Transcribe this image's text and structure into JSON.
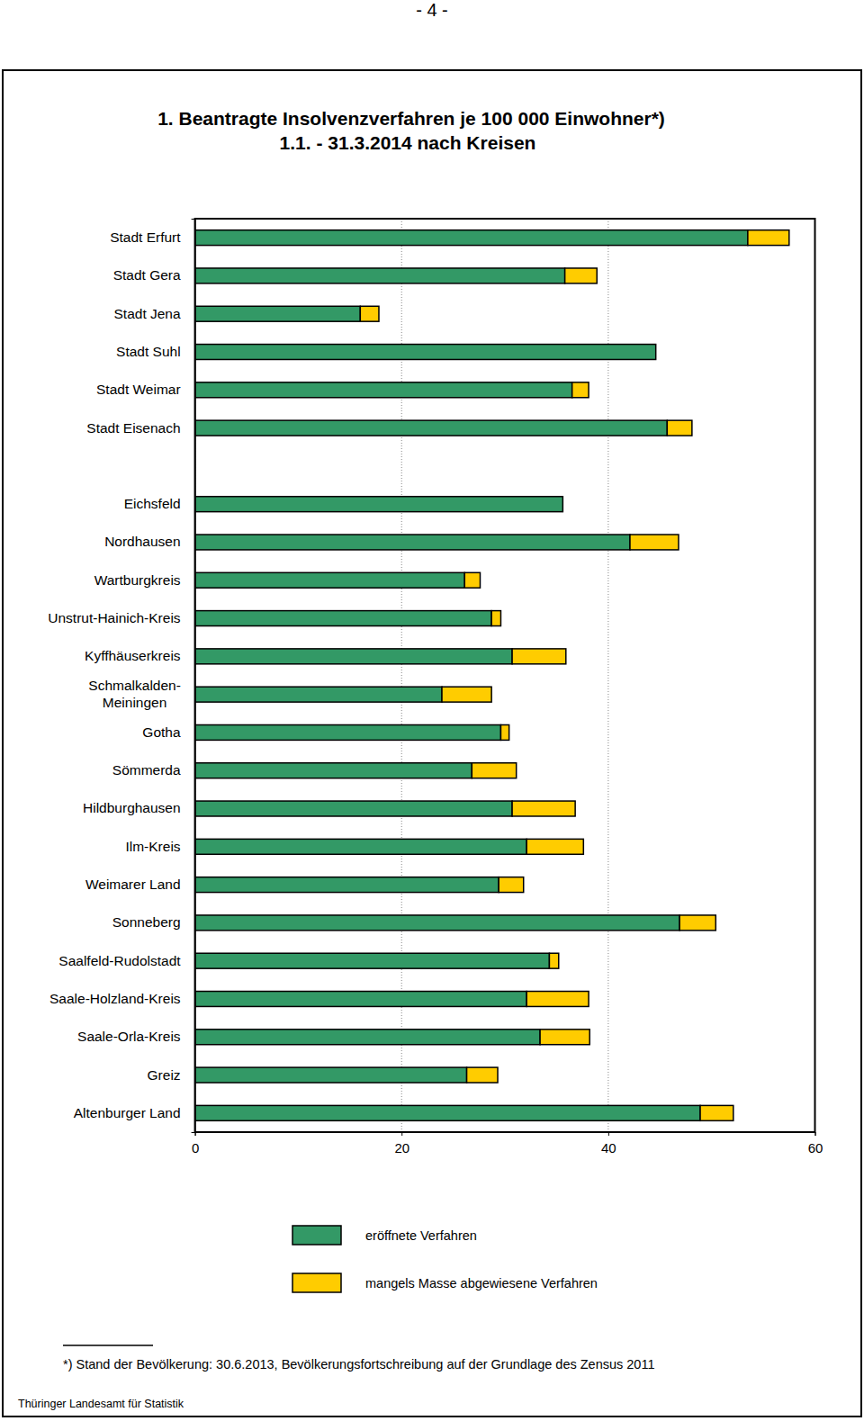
{
  "chart_data": {
    "type": "bar",
    "orientation": "horizontal",
    "stacked": true,
    "grid": true,
    "title": "1. Beantragte Insolvenzverfahren je 100 000 Einwohner*)",
    "subtitle": "1.1. - 31.3.2014 nach Kreisen",
    "annotations": [
      "- 4 -",
      "*) Stand der Bevölkerung: 30.6.2013, Bevölkerungsfortschreibung auf der Grundlage des Zensus 2011",
      "Thüringer Landesamt für Statistik"
    ],
    "legend": "bottom",
    "categories": [
      "Stadt Erfurt",
      "Stadt Gera",
      "Stadt Jena",
      "Stadt Suhl",
      "Stadt Weimar",
      "Stadt Eisenach",
      null,
      "Eichsfeld",
      "Nordhausen",
      "Wartburgkreis",
      "Unstrut-Hainich-Kreis",
      "Kyffhäuserkreis",
      "Schmalkalden-\nMeiningen",
      "Gotha",
      "Sömmerda",
      "Hildburghausen",
      "Ilm-Kreis",
      "Weimarer Land",
      "Sonneberg",
      "Saalfeld-Rudolstadt",
      "Saale-Holzland-Kreis",
      "Saale-Orla-Kreis",
      "Greiz",
      "Altenburger Land"
    ],
    "series": [
      {
        "name": "eröffnete Verfahren",
        "color": "#339966",
        "values": [
          53.5,
          35.8,
          16.0,
          44.6,
          36.5,
          45.7,
          null,
          35.6,
          42.1,
          26.1,
          28.7,
          30.7,
          23.9,
          29.6,
          26.8,
          30.7,
          32.1,
          29.4,
          46.9,
          34.3,
          32.1,
          33.4,
          26.3,
          48.9
        ]
      },
      {
        "name": "mangels Masse abgewiesene Verfahren",
        "color": "#ffcc00",
        "values": [
          4.0,
          3.1,
          1.8,
          0,
          1.6,
          2.4,
          null,
          0,
          4.7,
          1.5,
          0.9,
          5.2,
          4.8,
          0.8,
          4.3,
          6.1,
          5.5,
          2.4,
          3.5,
          0.9,
          6.0,
          4.8,
          3.0,
          3.2
        ]
      }
    ],
    "xlim": [
      0,
      60
    ],
    "xticks": [
      0,
      20,
      40,
      60
    ]
  }
}
